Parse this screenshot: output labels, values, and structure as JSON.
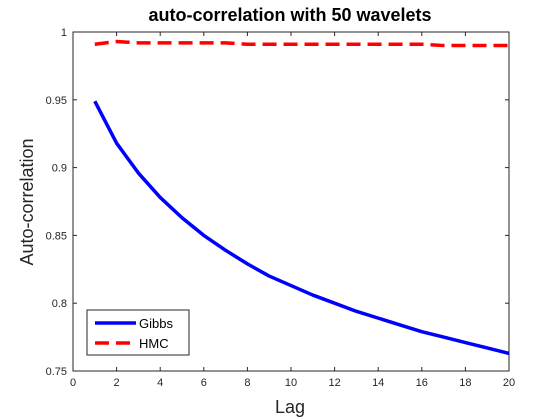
{
  "chart_data": {
    "type": "line",
    "title": "auto-correlation with 50 wavelets",
    "xlabel": "Lag",
    "ylabel": "Auto-correlation",
    "xlim": [
      0,
      20
    ],
    "ylim": [
      0.75,
      1
    ],
    "xticks": [
      0,
      2,
      4,
      6,
      8,
      10,
      12,
      14,
      16,
      18,
      20
    ],
    "yticks": [
      0.75,
      0.8,
      0.85,
      0.9,
      0.95,
      1
    ],
    "xtick_labels": [
      "0",
      "2",
      "4",
      "6",
      "8",
      "10",
      "12",
      "14",
      "16",
      "18",
      "20"
    ],
    "ytick_labels": [
      "0.75",
      "0.8",
      "0.85",
      "0.9",
      "0.95",
      "1"
    ],
    "grid": false,
    "legend_position": "bottom-left",
    "x": [
      1,
      2,
      3,
      4,
      5,
      6,
      7,
      8,
      9,
      10,
      11,
      12,
      13,
      14,
      15,
      16,
      17,
      18,
      19,
      20
    ],
    "series": [
      {
        "name": "Gibbs",
        "color": "#0000ff",
        "style": "solid",
        "values": [
          0.949,
          0.918,
          0.896,
          0.878,
          0.863,
          0.85,
          0.839,
          0.829,
          0.82,
          0.813,
          0.806,
          0.8,
          0.794,
          0.789,
          0.784,
          0.779,
          0.775,
          0.771,
          0.767,
          0.763
        ]
      },
      {
        "name": "HMC",
        "color": "#ff0000",
        "style": "dashed",
        "values": [
          0.991,
          0.993,
          0.992,
          0.992,
          0.992,
          0.992,
          0.992,
          0.991,
          0.991,
          0.991,
          0.991,
          0.991,
          0.991,
          0.991,
          0.991,
          0.991,
          0.99,
          0.99,
          0.99,
          0.99
        ]
      }
    ]
  }
}
